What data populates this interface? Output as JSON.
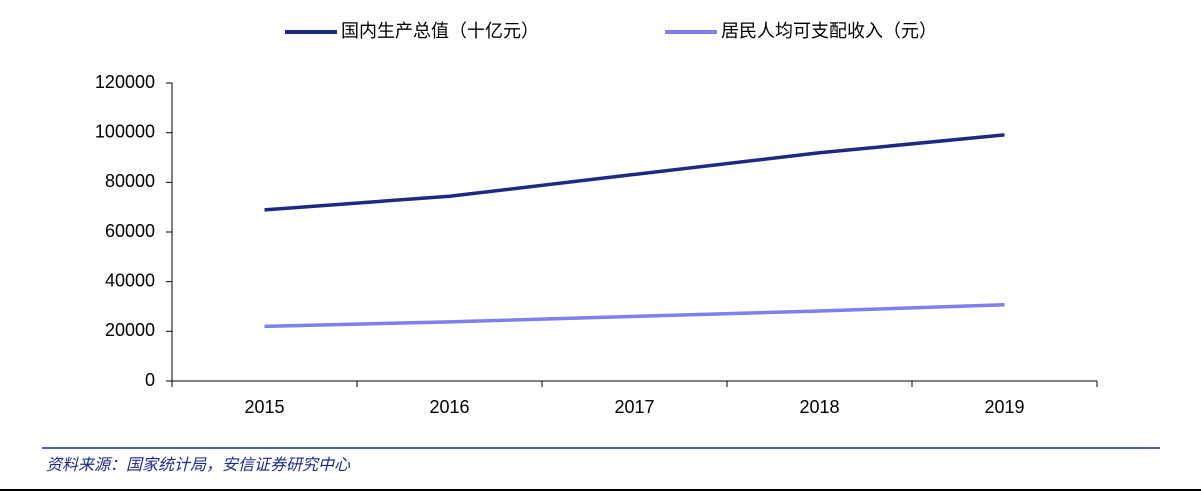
{
  "chart_data": {
    "type": "line",
    "categories": [
      "2015",
      "2016",
      "2017",
      "2018",
      "2019"
    ],
    "series": [
      {
        "name": "国内生产总值（十亿元）",
        "color": "#1c2a84",
        "values": [
          68900,
          74400,
          83200,
          91900,
          99100
        ]
      },
      {
        "name": "居民人均可支配收入（元）",
        "color": "#7f7ff0",
        "values": [
          22000,
          23800,
          26000,
          28200,
          30700
        ]
      }
    ],
    "ylim": [
      0,
      120000
    ],
    "yticks": [
      0,
      20000,
      40000,
      60000,
      80000,
      100000,
      120000
    ],
    "grid": false,
    "legend": "top",
    "source": "资料来源：国家统计局，安信证券研究中心"
  }
}
